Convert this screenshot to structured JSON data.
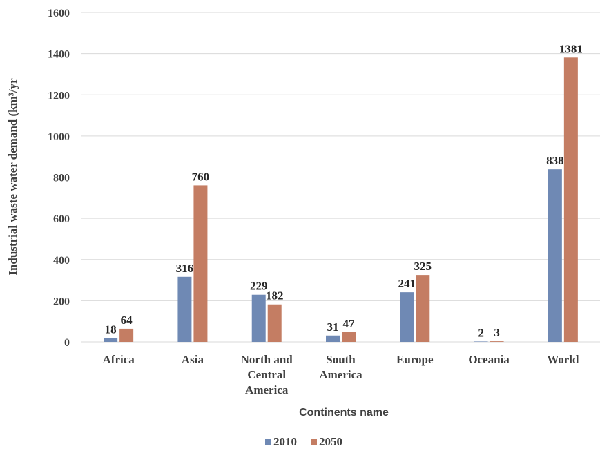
{
  "chart_data": {
    "type": "bar",
    "title": "",
    "xlabel": "Continents name",
    "ylabel": "Industrial waste water demand (km³/yr",
    "ylim": [
      0,
      1600
    ],
    "yticks": [
      "0",
      "200",
      "400",
      "600",
      "800",
      "1000",
      "1200",
      "1400",
      "1600"
    ],
    "grid": true,
    "legend_position": "bottom",
    "categories": [
      [
        "Africa"
      ],
      [
        "Asia"
      ],
      [
        "North and",
        "Central",
        "America"
      ],
      [
        "South",
        "America"
      ],
      [
        "Europe"
      ],
      [
        "Oceania"
      ],
      [
        "World"
      ]
    ],
    "series": [
      {
        "name": "2010",
        "color": "#6f89b4",
        "values": [
          18,
          316,
          229,
          31,
          241,
          2,
          838
        ]
      },
      {
        "name": "2050",
        "color": "#c47d63",
        "values": [
          64,
          760,
          182,
          47,
          325,
          3,
          1381
        ]
      }
    ]
  }
}
